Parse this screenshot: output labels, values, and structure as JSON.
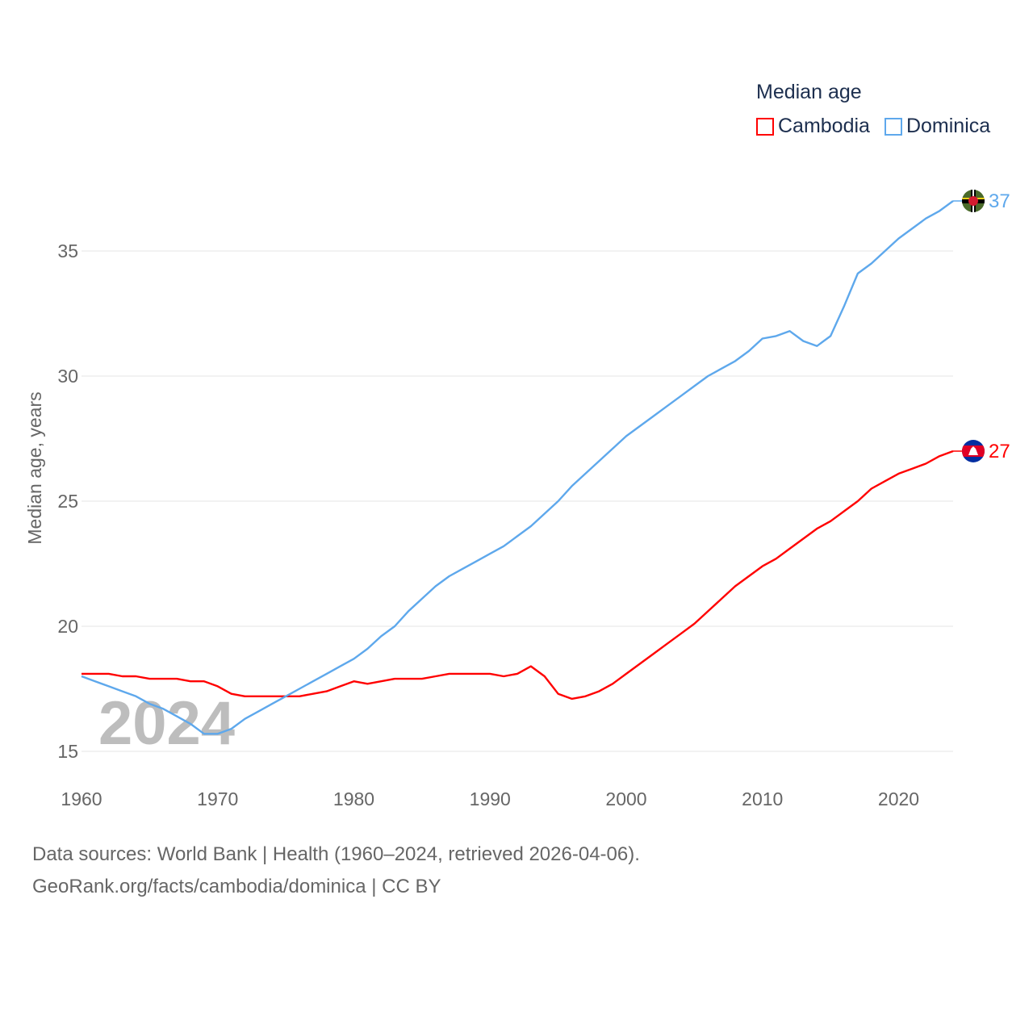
{
  "chart_data": {
    "type": "line",
    "title": "Median age",
    "ylabel": "Median age, years",
    "xlabel": "",
    "ylim": [
      15,
      37.5
    ],
    "xlim": [
      1960,
      2024
    ],
    "yticks": [
      15,
      20,
      25,
      30,
      35
    ],
    "xticks": [
      1960,
      1970,
      1980,
      1990,
      2000,
      2010,
      2020
    ],
    "grid": true,
    "legend_position": "top-right",
    "year_watermark": "2024",
    "x": [
      1960,
      1961,
      1962,
      1963,
      1964,
      1965,
      1966,
      1967,
      1968,
      1969,
      1970,
      1971,
      1972,
      1973,
      1974,
      1975,
      1976,
      1977,
      1978,
      1979,
      1980,
      1981,
      1982,
      1983,
      1984,
      1985,
      1986,
      1987,
      1988,
      1989,
      1990,
      1991,
      1992,
      1993,
      1994,
      1995,
      1996,
      1997,
      1998,
      1999,
      2000,
      2001,
      2002,
      2003,
      2004,
      2005,
      2006,
      2007,
      2008,
      2009,
      2010,
      2011,
      2012,
      2013,
      2014,
      2015,
      2016,
      2017,
      2018,
      2019,
      2020,
      2021,
      2022,
      2023,
      2024
    ],
    "series": [
      {
        "name": "Cambodia",
        "color": "#ff0000",
        "end_label": "27",
        "values": [
          18.1,
          18.1,
          18.1,
          18.0,
          18.0,
          17.9,
          17.9,
          17.9,
          17.8,
          17.8,
          17.6,
          17.3,
          17.2,
          17.2,
          17.2,
          17.2,
          17.2,
          17.3,
          17.4,
          17.6,
          17.8,
          17.7,
          17.8,
          17.9,
          17.9,
          17.9,
          18.0,
          18.1,
          18.1,
          18.1,
          18.1,
          18.0,
          18.1,
          18.4,
          18.0,
          17.3,
          17.1,
          17.2,
          17.4,
          17.7,
          18.1,
          18.5,
          18.9,
          19.3,
          19.7,
          20.1,
          20.6,
          21.1,
          21.6,
          22.0,
          22.4,
          22.7,
          23.1,
          23.5,
          23.9,
          24.2,
          24.6,
          25.0,
          25.5,
          25.8,
          26.1,
          26.3,
          26.5,
          26.8,
          27.0
        ]
      },
      {
        "name": "Dominica",
        "color": "#5ea8ec",
        "end_label": "37",
        "values": [
          18.0,
          17.8,
          17.6,
          17.4,
          17.2,
          16.9,
          16.7,
          16.4,
          16.1,
          15.7,
          15.7,
          15.9,
          16.3,
          16.6,
          16.9,
          17.2,
          17.5,
          17.8,
          18.1,
          18.4,
          18.7,
          19.1,
          19.6,
          20.0,
          20.6,
          21.1,
          21.6,
          22.0,
          22.3,
          22.6,
          22.9,
          23.2,
          23.6,
          24.0,
          24.5,
          25.0,
          25.6,
          26.1,
          26.6,
          27.1,
          27.6,
          28.0,
          28.4,
          28.8,
          29.2,
          29.6,
          30.0,
          30.3,
          30.6,
          31.0,
          31.5,
          31.6,
          31.8,
          31.4,
          31.2,
          31.6,
          32.8,
          34.1,
          34.5,
          35.0,
          35.5,
          35.9,
          36.3,
          36.6,
          37.0
        ]
      }
    ]
  },
  "footer": {
    "sources": "Data sources: World Bank | Health (1960–2024, retrieved 2026-04-06).",
    "link": "GeoRank.org/facts/cambodia/dominica | CC BY"
  }
}
